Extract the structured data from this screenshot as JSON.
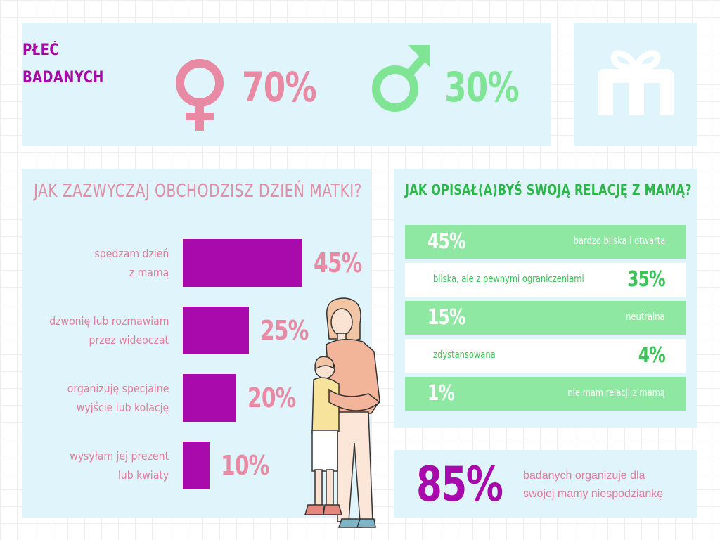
{
  "gender": {
    "title_line1": "PŁEĆ",
    "title_line2": "BADANYCH",
    "female_pct": "70%",
    "male_pct": "30%",
    "female_icon": "female-symbol-icon",
    "male_icon": "male-symbol-icon",
    "female_color": "#e88aa3",
    "male_color": "#7fe594"
  },
  "logo": {
    "icon": "gift-logo-icon",
    "color": "#ffffff"
  },
  "chart_data": [
    {
      "type": "bar",
      "orientation": "horizontal",
      "title": "JAK ZAZWYCZAJ OBCHODZISZ DZIEŃ MATKI?",
      "categories": [
        [
          "spędzam dzień",
          "z mamą"
        ],
        [
          "dzwonię lub rozmawiam",
          "przez wideoczat"
        ],
        [
          "organizuję specjalne",
          "wyjście lub kolację"
        ],
        [
          "wysyłam jej prezent",
          "lub kwiaty"
        ]
      ],
      "values": [
        45,
        25,
        20,
        10
      ],
      "value_labels": [
        "45%",
        "25%",
        "20%",
        "10%"
      ],
      "bar_color": "#a90aac",
      "xlim": [
        0,
        45
      ]
    },
    {
      "type": "table",
      "title": "JAK OPISAŁ(A)BYŚ SWOJĄ RELACJĘ Z MAMĄ?",
      "rows": [
        {
          "label": "bardzo bliska i otwarta",
          "value": 45,
          "pct": "45%"
        },
        {
          "label": "bliska, ale z pewnymi ograniczeniami",
          "value": 35,
          "pct": "35%"
        },
        {
          "label": "neutralna",
          "value": 15,
          "pct": "15%"
        },
        {
          "label": "zdystansowana",
          "value": 4,
          "pct": "4%"
        },
        {
          "label": "nie mam relacji z mamą",
          "value": 1,
          "pct": "1%"
        }
      ],
      "accent_color": "#8ee8a1"
    }
  ],
  "stat": {
    "value": "85%",
    "text_line1": "badanych organizuje dla",
    "text_line2": "swojej mamy niespodziankę"
  },
  "illustration": {
    "icon": "mother-child-hug-illustration"
  }
}
